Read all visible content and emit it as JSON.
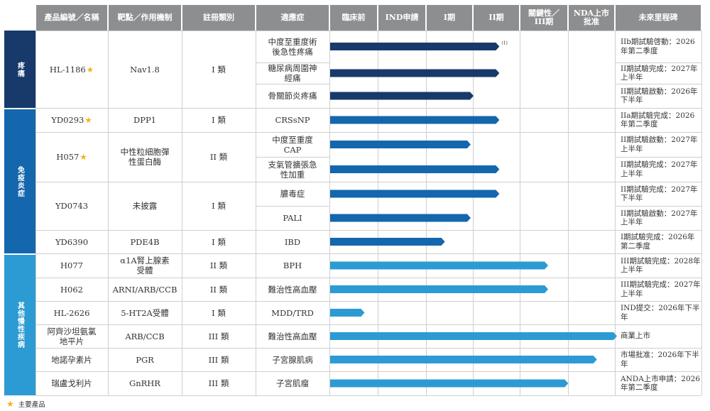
{
  "headers": [
    "產品編號／名稱",
    "靶點／作用機制",
    "註冊類別",
    "適應症",
    "臨床前",
    "IND申請",
    "I期",
    "II期",
    "關鍵性／III期",
    "NDA上市批准",
    "未來里程碑"
  ],
  "categories": [
    {
      "label": "疼痛",
      "color": "#173a6b"
    },
    {
      "label": "免疫炎症",
      "color": "#1466ad"
    },
    {
      "label": "其他慢性疾病",
      "color": "#2c9bd3"
    }
  ],
  "products": [
    {
      "name": "HL-1186",
      "star": true,
      "target": "Nav1.8",
      "reg": "I 類"
    },
    {
      "name": "YD0293",
      "star": true,
      "target": "DPP1",
      "reg": "I 類"
    },
    {
      "name": "H057",
      "star": true,
      "target": "中性粒細胞彈性蛋白酶",
      "reg": "II 類"
    },
    {
      "name": "YD0743",
      "star": false,
      "target": "未披露",
      "reg": "I 類"
    },
    {
      "name": "YD6390",
      "star": false,
      "target": "PDE4B",
      "reg": "I 類"
    },
    {
      "name": "H077",
      "star": false,
      "target": "α1A腎上腺素受體",
      "reg": "II 類"
    },
    {
      "name": "H062",
      "star": false,
      "target": "ARNI/ARB/CCB",
      "reg": "II 類"
    },
    {
      "name": "HL-2626",
      "star": false,
      "target": "5-HT2A受體",
      "reg": "I 類"
    },
    {
      "name": "阿齊沙坦氨氯地平片",
      "star": false,
      "target": "ARB/CCB",
      "reg": "III 類"
    },
    {
      "name": "地諾孕素片",
      "star": false,
      "target": "PGR",
      "reg": "III 類"
    },
    {
      "name": "瑞盧戈利片",
      "star": false,
      "target": "GnRHR",
      "reg": "III 類"
    }
  ],
  "indications": [
    {
      "text": "中度至重度術後急性疼痛",
      "progress": 0.59,
      "color": "#173a6b",
      "note": "(1)",
      "milestone": "IIb期試驗啓動：2026年第二季度"
    },
    {
      "text": "糖尿病周圍神經痛",
      "progress": 0.59,
      "color": "#173a6b",
      "note": "",
      "milestone": "II期試驗完成：2027年上半年"
    },
    {
      "text": "骨關節炎疼痛",
      "progress": 0.5,
      "color": "#173a6b",
      "note": "",
      "milestone": "II期試驗啟動：2026年下半年"
    },
    {
      "text": "CRSsNP",
      "progress": 0.59,
      "color": "#1466ad",
      "note": "",
      "milestone": "IIa期試驗完成：2026年第二季度"
    },
    {
      "text": "中度至重度CAP",
      "progress": 0.49,
      "color": "#1466ad",
      "note": "",
      "milestone": "II期試驗啟動：2027年上半年"
    },
    {
      "text": "支氣管擴張急性加重",
      "progress": 0.59,
      "color": "#1466ad",
      "note": "",
      "milestone": "II期試驗完成：2027年上半年"
    },
    {
      "text": "膿毒症",
      "progress": 0.59,
      "color": "#1466ad",
      "note": "",
      "milestone": "II期試驗完成：2027年下半年"
    },
    {
      "text": "PALI",
      "progress": 0.49,
      "color": "#1466ad",
      "note": "",
      "milestone": "II期試驗啟動：2027年上半年"
    },
    {
      "text": "IBD",
      "progress": 0.4,
      "color": "#1466ad",
      "note": "",
      "milestone": "I期試驗完成：2026年第二季度"
    },
    {
      "text": "BPH",
      "progress": 0.76,
      "color": "#2c9bd3",
      "note": "",
      "milestone": "III期試驗完成：2028年上半年"
    },
    {
      "text": "難治性高血壓",
      "progress": 0.76,
      "color": "#2c9bd3",
      "note": "",
      "milestone": "III期試驗完成：2027年上半年"
    },
    {
      "text": "MDD/TRD",
      "progress": 0.12,
      "color": "#2c9bd3",
      "note": "",
      "milestone": "IND提交：2026年下半年"
    },
    {
      "text": "難治性高血壓",
      "progress": 1.0,
      "color": "#2c9bd3",
      "note": "",
      "milestone": "商業上市"
    },
    {
      "text": "子宮腺肌病",
      "progress": 0.93,
      "color": "#2c9bd3",
      "note": "",
      "milestone": "市場批准：2026年下半年"
    },
    {
      "text": "子宮肌瘤",
      "progress": 0.83,
      "color": "#2c9bd3",
      "note": "",
      "milestone": "ANDA上市申請：2026年第二季度"
    }
  ],
  "legend": "主要產品"
}
